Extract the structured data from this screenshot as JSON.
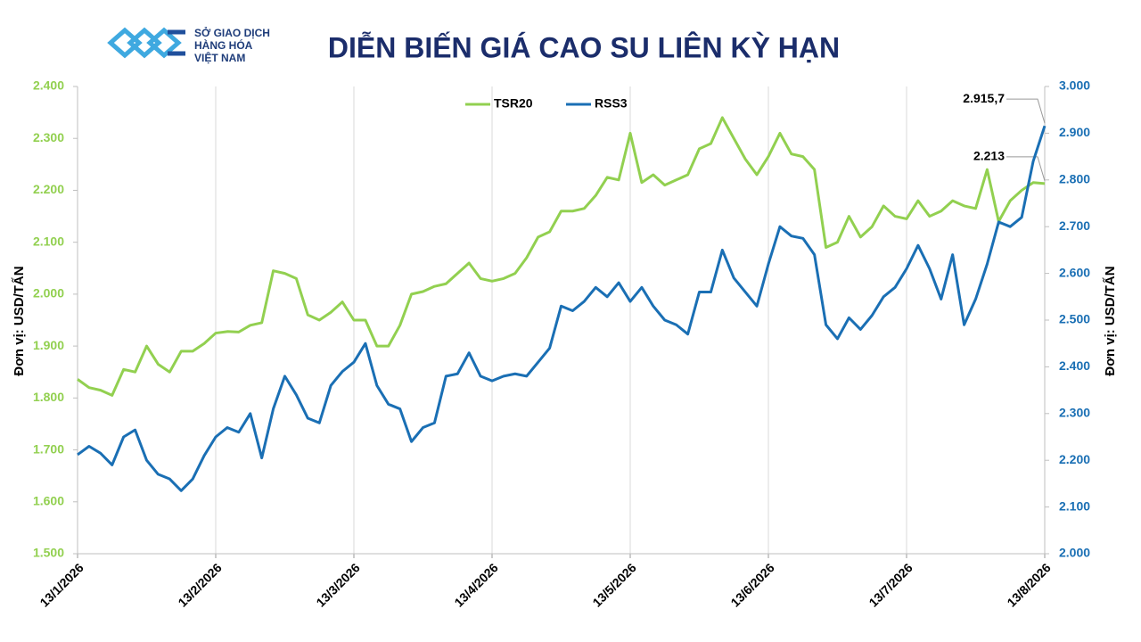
{
  "logo": {
    "lines": [
      "SỞ GIAO DỊCH",
      "HÀNG HÓA",
      "VIỆT NAM"
    ]
  },
  "chart_data": {
    "type": "line",
    "title": "DIỄN BIẾN GIÁ CAO SU LIÊN KỲ HẠN",
    "y_label": "Đơn vị: USD/TẤN",
    "y2_label": "Đơn vị: USD/TẤN",
    "grid": "x",
    "legend": "top",
    "categories": [
      "13/1/2026",
      null,
      null,
      null,
      null,
      null,
      null,
      null,
      null,
      null,
      null,
      null,
      "13/2/2026",
      null,
      null,
      null,
      null,
      null,
      null,
      null,
      null,
      null,
      null,
      null,
      "13/3/2026",
      null,
      null,
      null,
      null,
      null,
      null,
      null,
      null,
      null,
      null,
      null,
      "13/4/2026",
      null,
      null,
      null,
      null,
      null,
      null,
      null,
      null,
      null,
      null,
      null,
      "13/5/2026",
      null,
      null,
      null,
      null,
      null,
      null,
      null,
      null,
      null,
      null,
      null,
      "13/6/2026",
      null,
      null,
      null,
      null,
      null,
      null,
      null,
      null,
      null,
      null,
      null,
      "13/7/2026",
      null,
      null,
      null,
      null,
      null,
      null,
      null,
      null,
      null,
      null,
      null,
      "13/8/2026"
    ],
    "ylim": [
      1500,
      2400
    ],
    "yticks": [
      {
        "value": 1500,
        "label": "1.500"
      },
      {
        "value": 1600,
        "label": "1.600"
      },
      {
        "value": 1700,
        "label": "1.700"
      },
      {
        "value": 1800,
        "label": "1.800"
      },
      {
        "value": 1900,
        "label": "1.900"
      },
      {
        "value": 2000,
        "label": "2.000"
      },
      {
        "value": 2100,
        "label": "2.100"
      },
      {
        "value": 2200,
        "label": "2.200"
      },
      {
        "value": 2300,
        "label": "2.300"
      },
      {
        "value": 2400,
        "label": "2.400"
      }
    ],
    "y2lim": [
      2000,
      3000
    ],
    "y2ticks": [
      {
        "value": 2000,
        "label": "2.000"
      },
      {
        "value": 2100,
        "label": "2.100"
      },
      {
        "value": 2200,
        "label": "2.200"
      },
      {
        "value": 2300,
        "label": "2.300"
      },
      {
        "value": 2400,
        "label": "2.400"
      },
      {
        "value": 2500,
        "label": "2.500"
      },
      {
        "value": 2600,
        "label": "2.600"
      },
      {
        "value": 2700,
        "label": "2.700"
      },
      {
        "value": 2800,
        "label": "2.800"
      },
      {
        "value": 2900,
        "label": "2.900"
      },
      {
        "value": 3000,
        "label": "3.000"
      }
    ],
    "series": [
      {
        "name": "TSR20",
        "color": "#92d050",
        "values": [
          1836,
          1820,
          1815,
          1805,
          1855,
          1850,
          1900,
          1865,
          1850,
          1890,
          1890,
          1905,
          1925,
          1928,
          1927,
          1940,
          1945,
          2045,
          2040,
          2030,
          1960,
          1950,
          1965,
          1985,
          1950,
          1950,
          1900,
          1900,
          1940,
          2000,
          2005,
          2015,
          2020,
          2040,
          2060,
          2030,
          2025,
          2030,
          2040,
          2070,
          2110,
          2120,
          2160,
          2160,
          2165,
          2190,
          2225,
          2220,
          2310,
          2215,
          2230,
          2210,
          2220,
          2230,
          2280,
          2290,
          2340,
          2300,
          2260,
          2230,
          2265,
          2310,
          2270,
          2265,
          2240,
          2090,
          2100,
          2150,
          2110,
          2130,
          2170,
          2150,
          2145,
          2180,
          2150,
          2160,
          2180,
          2170,
          2165,
          2240,
          2140,
          2180,
          2200,
          2215,
          2213
        ],
        "value_labels": [
          null,
          null,
          null,
          null,
          null,
          null,
          null,
          null,
          null,
          null,
          null,
          null,
          null,
          null,
          null,
          null,
          null,
          null,
          null,
          null,
          null,
          null,
          null,
          null,
          null,
          null,
          null,
          null,
          null,
          null,
          null,
          null,
          null,
          null,
          null,
          null,
          null,
          null,
          null,
          null,
          null,
          null,
          null,
          null,
          null,
          null,
          null,
          null,
          null,
          null,
          null,
          null,
          null,
          null,
          null,
          null,
          null,
          null,
          null,
          null,
          null,
          null,
          null,
          null,
          null,
          null,
          null,
          null,
          null,
          null,
          null,
          null,
          null,
          null,
          null,
          null,
          null,
          null,
          null,
          null,
          null,
          null,
          null,
          null,
          "2.213"
        ]
      },
      {
        "name": "RSS3",
        "color": "#1a6fb4",
        "axis": "y2",
        "values": [
          2212,
          2230,
          2215,
          2190,
          2250,
          2265,
          2200,
          2170,
          2160,
          2135,
          2160,
          2210,
          2250,
          2270,
          2260,
          2300,
          2205,
          2310,
          2380,
          2340,
          2290,
          2280,
          2360,
          2390,
          2410,
          2450,
          2360,
          2320,
          2310,
          2240,
          2270,
          2280,
          2380,
          2385,
          2430,
          2380,
          2370,
          2380,
          2385,
          2380,
          2410,
          2440,
          2530,
          2520,
          2540,
          2570,
          2550,
          2580,
          2540,
          2570,
          2530,
          2500,
          2490,
          2470,
          2560,
          2560,
          2650,
          2590,
          2560,
          2530,
          2620,
          2700,
          2680,
          2675,
          2640,
          2490,
          2460,
          2505,
          2480,
          2510,
          2550,
          2570,
          2610,
          2660,
          2610,
          2545,
          2640,
          2490,
          2545,
          2620,
          2710,
          2700,
          2720,
          2840,
          2915.7
        ],
        "value_labels": [
          null,
          null,
          null,
          null,
          null,
          null,
          null,
          null,
          null,
          null,
          null,
          null,
          null,
          null,
          null,
          null,
          null,
          null,
          null,
          null,
          null,
          null,
          null,
          null,
          null,
          null,
          null,
          null,
          null,
          null,
          null,
          null,
          null,
          null,
          null,
          null,
          null,
          null,
          null,
          null,
          null,
          null,
          null,
          null,
          null,
          null,
          null,
          null,
          null,
          null,
          null,
          null,
          null,
          null,
          null,
          null,
          null,
          null,
          null,
          null,
          null,
          null,
          null,
          null,
          null,
          null,
          null,
          null,
          null,
          null,
          null,
          null,
          null,
          null,
          null,
          null,
          null,
          null,
          null,
          null,
          null,
          null,
          null,
          null,
          "2.915,7"
        ]
      }
    ]
  }
}
